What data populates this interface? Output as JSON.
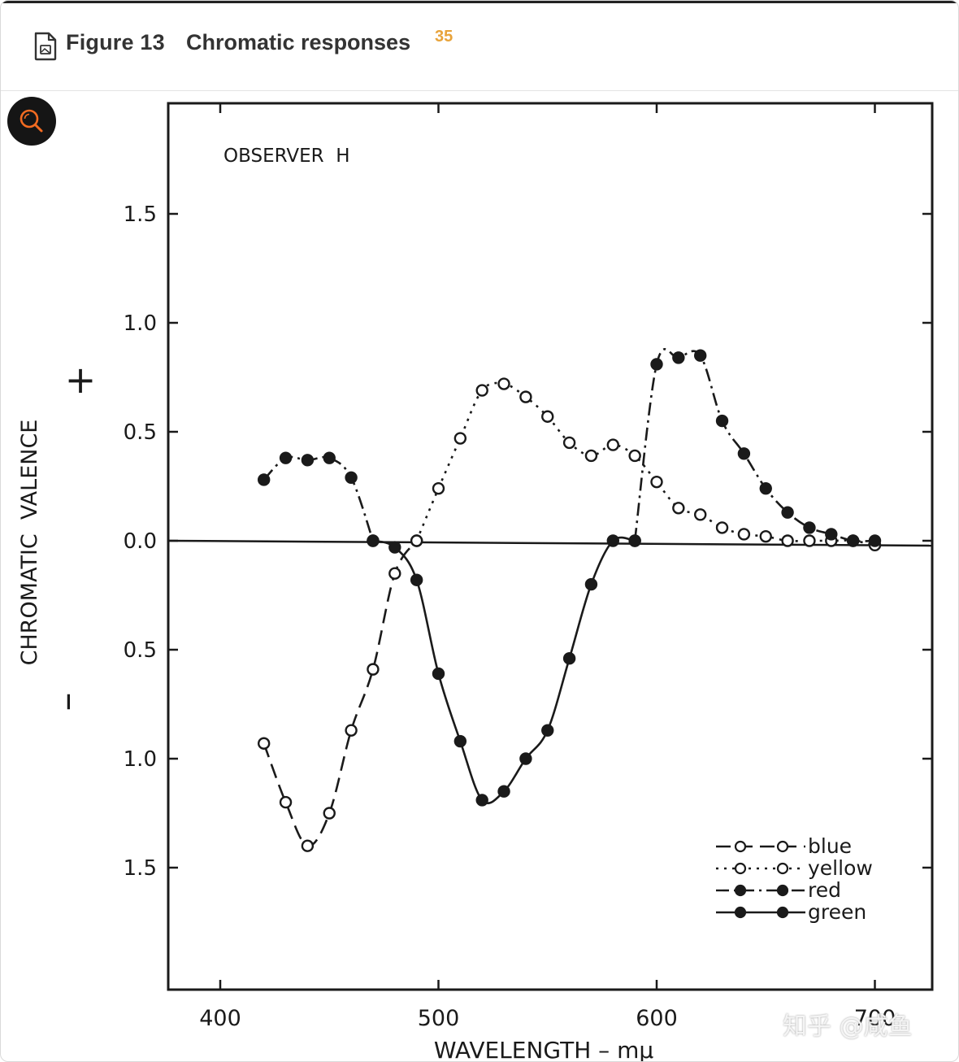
{
  "header": {
    "figure_label": "Figure 13",
    "figure_title": "Chromatic responses",
    "reference": "35",
    "icon": "document-icon"
  },
  "toolbar": {
    "search_icon": "search-icon"
  },
  "watermark": "知乎 @咸鱼",
  "colors": {
    "accent": "#e8a33a",
    "search_ring": "#f36b21",
    "ink": "#1a1a1a"
  },
  "chart_data": {
    "type": "line",
    "annotation": "OBSERVER  H",
    "xlabel": "WAVELENGTH – mμ",
    "ylabel": "CHROMATIC  VALENCE",
    "y_sign_plus": "+",
    "y_sign_minus": "–",
    "xlim": [
      375,
      727
    ],
    "ylim": [
      -2.05,
      2.0
    ],
    "x_ticks": [
      400,
      500,
      600,
      700
    ],
    "x_tick_labels": [
      "400",
      "500",
      "600",
      "700"
    ],
    "y_ticks": [
      1.5,
      1.0,
      0.5,
      0.0,
      -0.5,
      -1.0,
      -1.5
    ],
    "y_tick_labels": [
      "1.5",
      "1.0",
      "0.5",
      "0.0",
      "0.5",
      "1.0",
      "1.5"
    ],
    "grid": false,
    "legend_position": "bottom-right",
    "series": [
      {
        "name": "blue",
        "marker": "open",
        "line": "dashed",
        "x": [
          420,
          430,
          440,
          450,
          460,
          470,
          480,
          490
        ],
        "y": [
          -0.93,
          -1.2,
          -1.4,
          -1.25,
          -0.87,
          -0.59,
          -0.15,
          0.0
        ]
      },
      {
        "name": "yellow",
        "marker": "open",
        "line": "dotted",
        "x": [
          490,
          500,
          510,
          520,
          530,
          540,
          550,
          560,
          570,
          580,
          590,
          600,
          610,
          620,
          630,
          640,
          650,
          660,
          670,
          680,
          690,
          700
        ],
        "y": [
          0.0,
          0.24,
          0.47,
          0.69,
          0.72,
          0.66,
          0.57,
          0.45,
          0.39,
          0.44,
          0.39,
          0.27,
          0.15,
          0.12,
          0.06,
          0.03,
          0.02,
          0.0,
          0.0,
          0.0,
          0.0,
          -0.02
        ]
      },
      {
        "name": "red",
        "marker": "filled",
        "line": "dash-dot",
        "x": [
          420,
          430,
          440,
          450,
          460,
          470,
          590,
          600,
          610,
          620,
          630,
          640,
          650,
          660,
          670,
          680,
          690,
          700
        ],
        "y": [
          0.28,
          0.38,
          0.37,
          0.38,
          0.29,
          0.0,
          0.0,
          0.81,
          0.84,
          0.85,
          0.55,
          0.4,
          0.24,
          0.13,
          0.06,
          0.03,
          0.0,
          0.0
        ]
      },
      {
        "name": "green",
        "marker": "filled",
        "line": "solid",
        "x": [
          470,
          480,
          490,
          500,
          510,
          520,
          530,
          540,
          550,
          560,
          570,
          580,
          590
        ],
        "y": [
          0.0,
          -0.03,
          -0.18,
          -0.61,
          -0.92,
          -1.19,
          -1.15,
          -1.0,
          -0.87,
          -0.54,
          -0.2,
          0.0,
          0.0
        ]
      }
    ]
  }
}
